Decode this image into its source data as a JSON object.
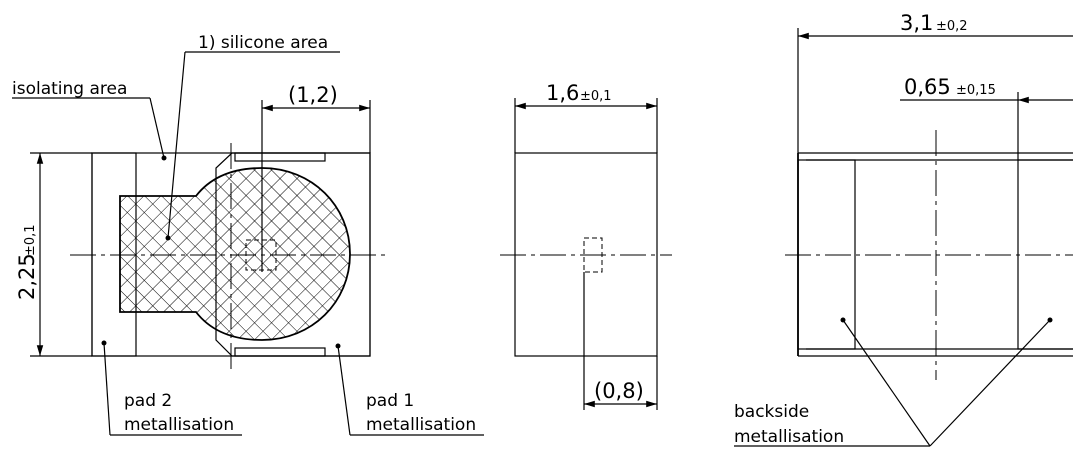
{
  "labels": {
    "silicone_area": "1) silicone area",
    "isolating_area": "isolating area",
    "pad2_line1": "pad 2",
    "pad2_line2": "metallisation",
    "pad1_line1": "pad 1",
    "pad1_line2": "metallisation",
    "backside_line1": "backside",
    "backside_line2": "metallisation"
  },
  "dimensions": {
    "height": {
      "value": "2,25",
      "tolerance": "±0,1"
    },
    "offset_top": {
      "value": "(1,2)"
    },
    "width_side": {
      "value": "1,6",
      "tolerance": "±0,1"
    },
    "offset_side": {
      "value": "(0,8)"
    },
    "total_width": {
      "value": "3,1",
      "tolerance": "±0,2"
    },
    "pad_width": {
      "value": "0,65",
      "tolerance": "±0,15"
    }
  }
}
